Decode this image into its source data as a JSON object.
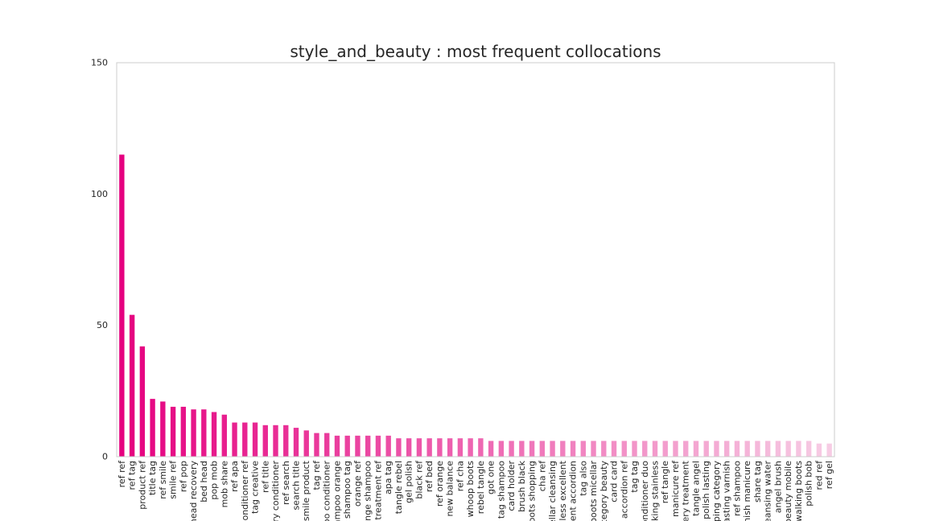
{
  "chart_data": {
    "type": "bar",
    "title": "style_and_beauty : most frequent collocations",
    "xlabel": "",
    "ylabel": "",
    "ylim": [
      0,
      150
    ],
    "yticks": [
      0,
      50,
      100,
      150
    ],
    "grid": false,
    "legend": "none",
    "color_start": "#e5007f",
    "color_end": "#f7cce4",
    "categories": [
      "ref ref",
      "ref tag",
      "product ref",
      "title tag",
      "ref smile",
      "smile ref",
      "ref pop",
      "head recovery",
      "bed head",
      "pop mob",
      "mob share",
      "ref apa",
      "conditioner ref",
      "tag creative",
      "ref title",
      "ery conditioner",
      "ref search",
      "search title",
      "smile product",
      "tag ref",
      "oo conditioner",
      "ampoo orange",
      "shampoo tag",
      "orange ref",
      "ange shampoo",
      "treatment ref",
      "apa tag",
      "tangle rebel",
      "gel polish",
      "black ref",
      "ref bed",
      "ref orange",
      "new balance",
      "ref cha",
      "whoop boots",
      "rebel tangle",
      "got one",
      "tag shampoo",
      "card holder",
      "brush black",
      "oots shopping",
      "cha ref",
      "ellar cleansing",
      "nless excellent",
      "llent accordion",
      "tag also",
      "boots micellar",
      "ategory beauty",
      "card card",
      "accordion ref",
      "tag tag",
      "onditioner duo",
      "cking stainless",
      "ref tangle",
      "manicure ref",
      "very treatment",
      "tangle angel",
      "polish lasting",
      "pping category",
      "lasting varnish",
      "ref shampoo",
      "mish manicure",
      "share tag",
      "leansing water",
      "angel brush",
      "beauty mobile",
      "walking boots",
      "polish bob",
      "red ref",
      "ref gel"
    ],
    "values": [
      115,
      54,
      42,
      22,
      21,
      19,
      19,
      18,
      18,
      17,
      16,
      13,
      13,
      13,
      12,
      12,
      12,
      11,
      10,
      9,
      9,
      8,
      8,
      8,
      8,
      8,
      8,
      7,
      7,
      7,
      7,
      7,
      7,
      7,
      7,
      7,
      6,
      6,
      6,
      6,
      6,
      6,
      6,
      6,
      6,
      6,
      6,
      6,
      6,
      6,
      6,
      6,
      6,
      6,
      6,
      6,
      6,
      6,
      6,
      6,
      6,
      6,
      6,
      6,
      6,
      6,
      6,
      6,
      5,
      5
    ]
  }
}
